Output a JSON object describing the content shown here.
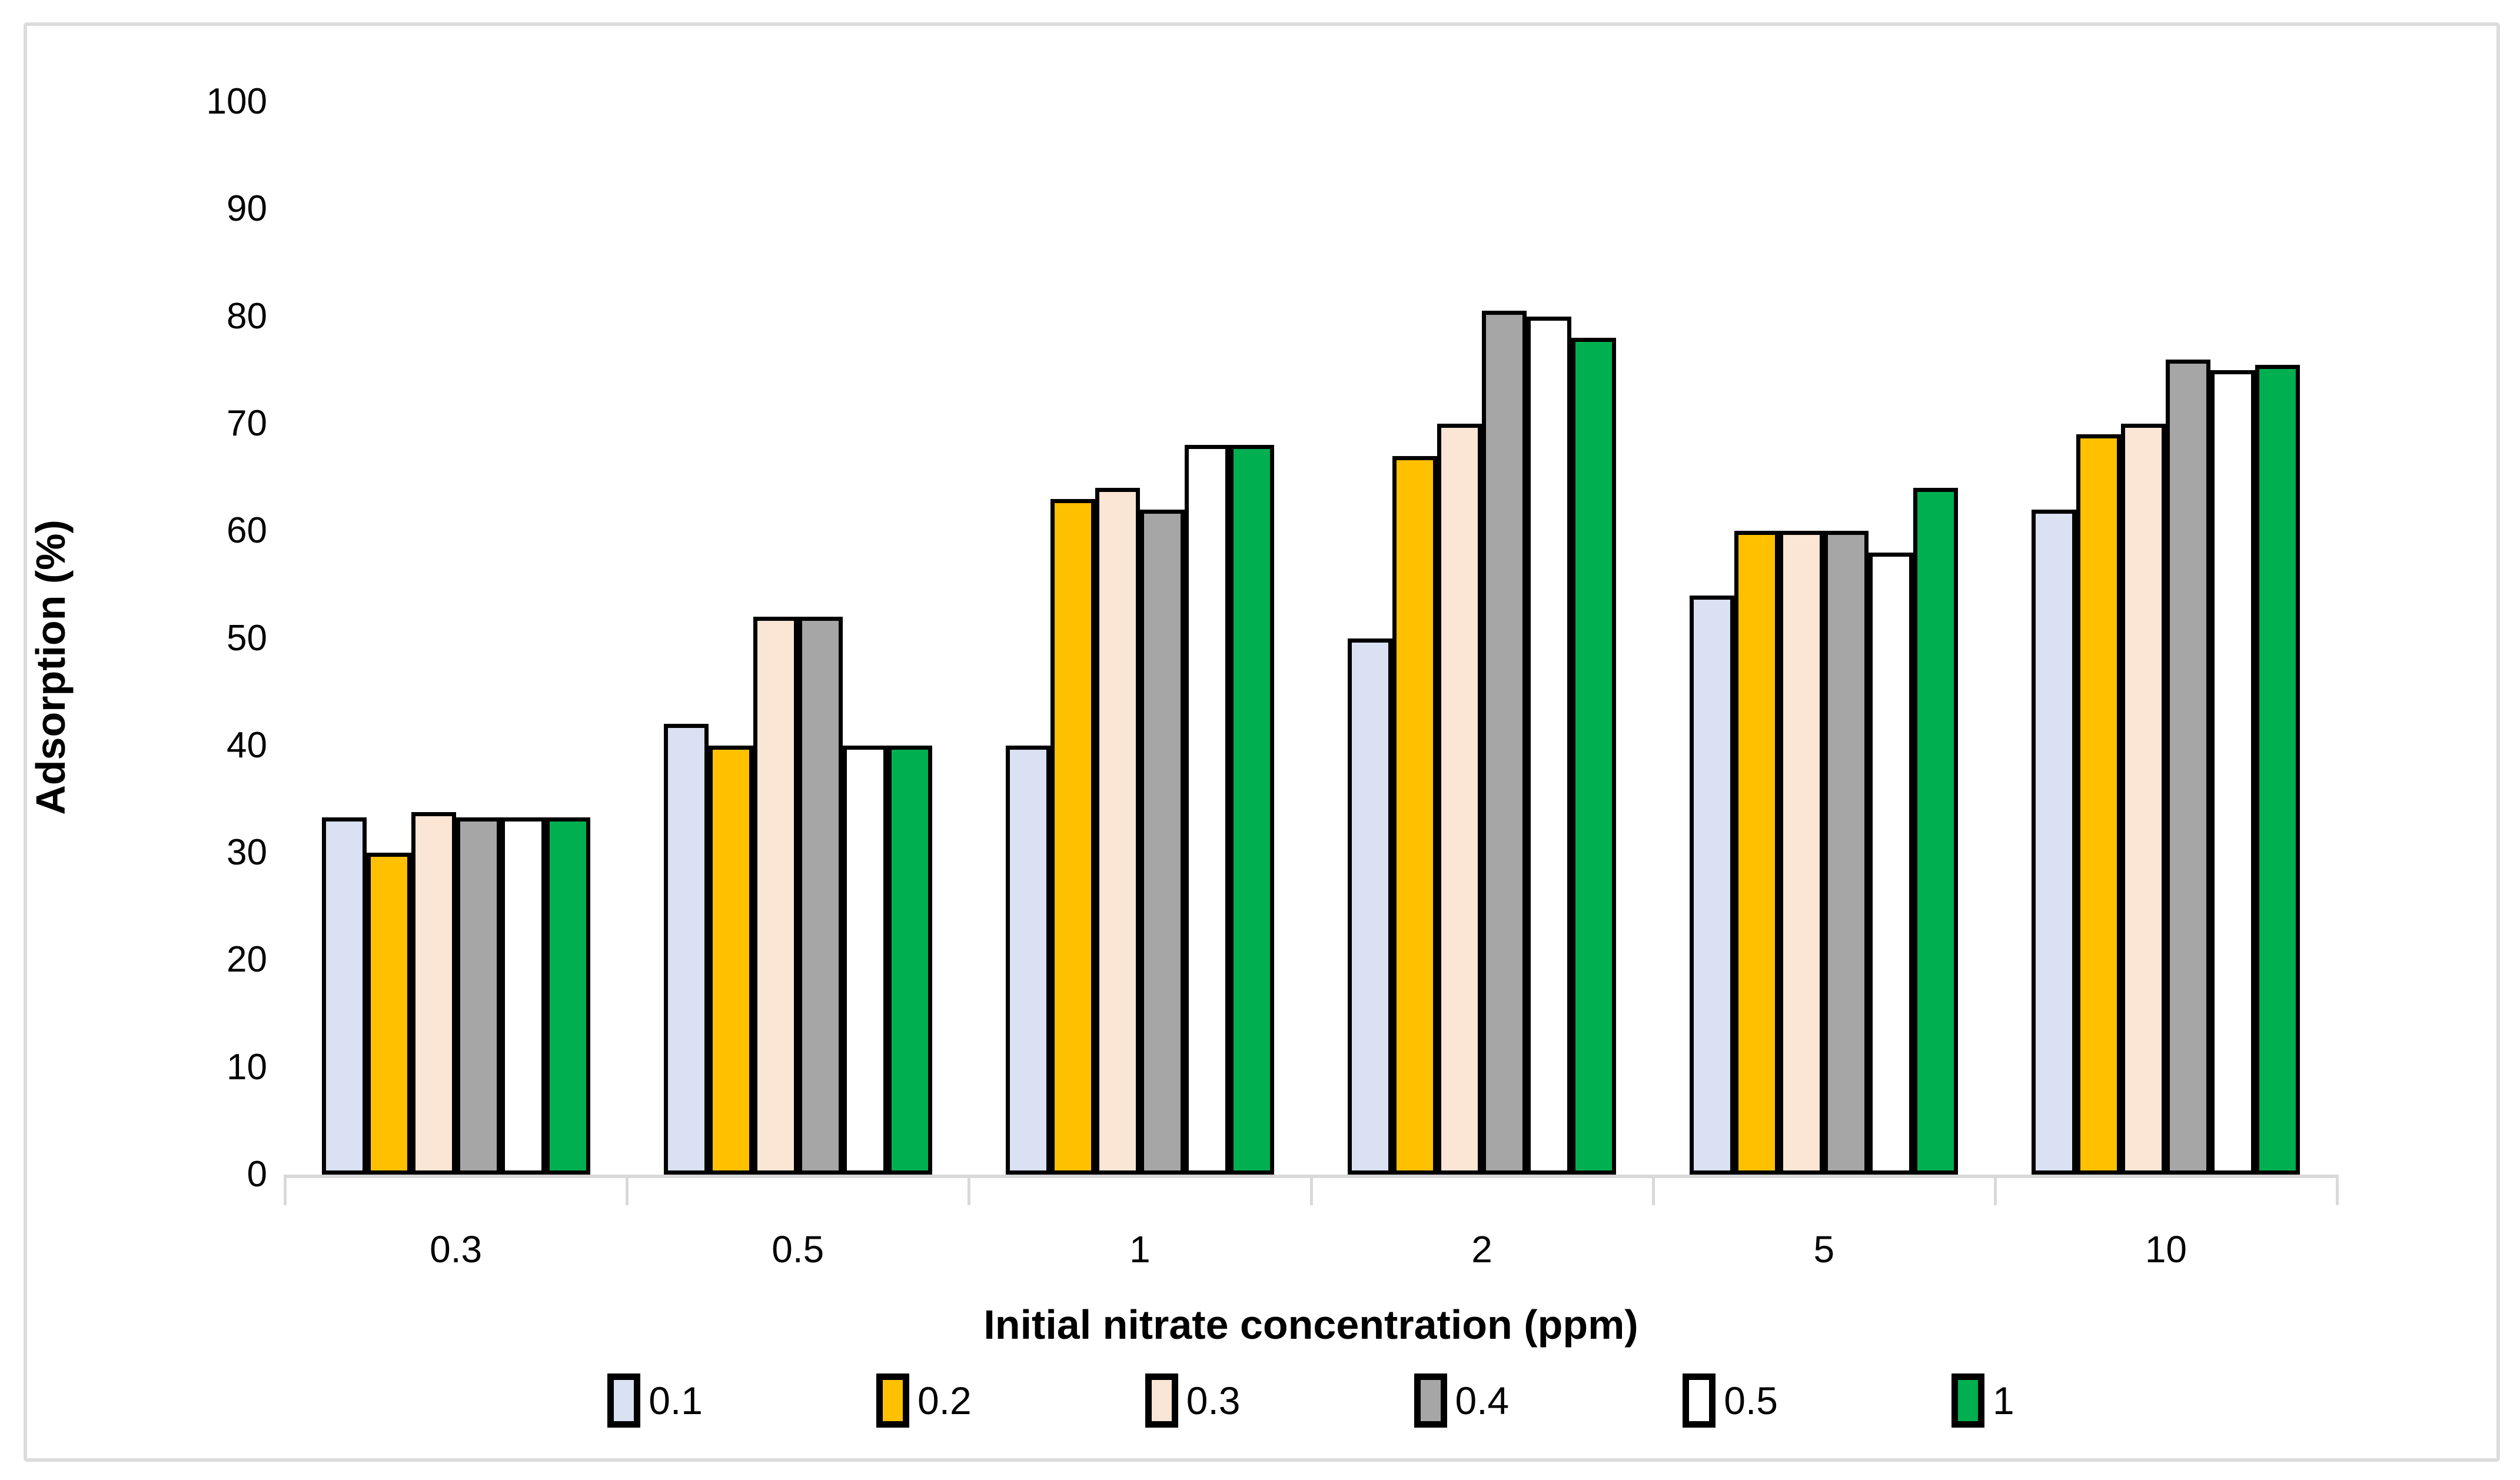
{
  "figure": {
    "background": "#FFFFFF",
    "frame_border_color": "#DCDCDC",
    "axis_line_color": "#D9D9D9",
    "bar_border_color": "#000000",
    "text_color": "#000000"
  },
  "chart_data": {
    "type": "bar",
    "title": "",
    "xlabel": "Initial nitrate concentration (ppm)",
    "ylabel": "Adsorption (%)",
    "ylim": [
      0,
      100
    ],
    "yticks": [
      0,
      10,
      20,
      30,
      40,
      50,
      60,
      70,
      80,
      90,
      100
    ],
    "grid": false,
    "legend_position": "bottom",
    "categories": [
      "0.3",
      "0.5",
      "1",
      "2",
      "5",
      "10"
    ],
    "series": [
      {
        "name": "0.1",
        "color": "#D9E1F2",
        "values": [
          33.3,
          42,
          40,
          50,
          54,
          62
        ]
      },
      {
        "name": "0.2",
        "color": "#FFC000",
        "values": [
          30,
          40,
          63,
          67,
          60,
          69
        ]
      },
      {
        "name": "0.3",
        "color": "#FBE5D5",
        "values": [
          33.8,
          52,
          64,
          70,
          60,
          70
        ]
      },
      {
        "name": "0.4",
        "color": "#A6A6A6",
        "values": [
          33.3,
          52,
          62,
          80.5,
          60,
          76
        ]
      },
      {
        "name": "0.5",
        "color": "#FFFFFF",
        "values": [
          33.3,
          40,
          68,
          80,
          58,
          75
        ]
      },
      {
        "name": "1",
        "color": "#00B050",
        "values": [
          33.3,
          40,
          68,
          78,
          64,
          75.5
        ]
      }
    ]
  }
}
